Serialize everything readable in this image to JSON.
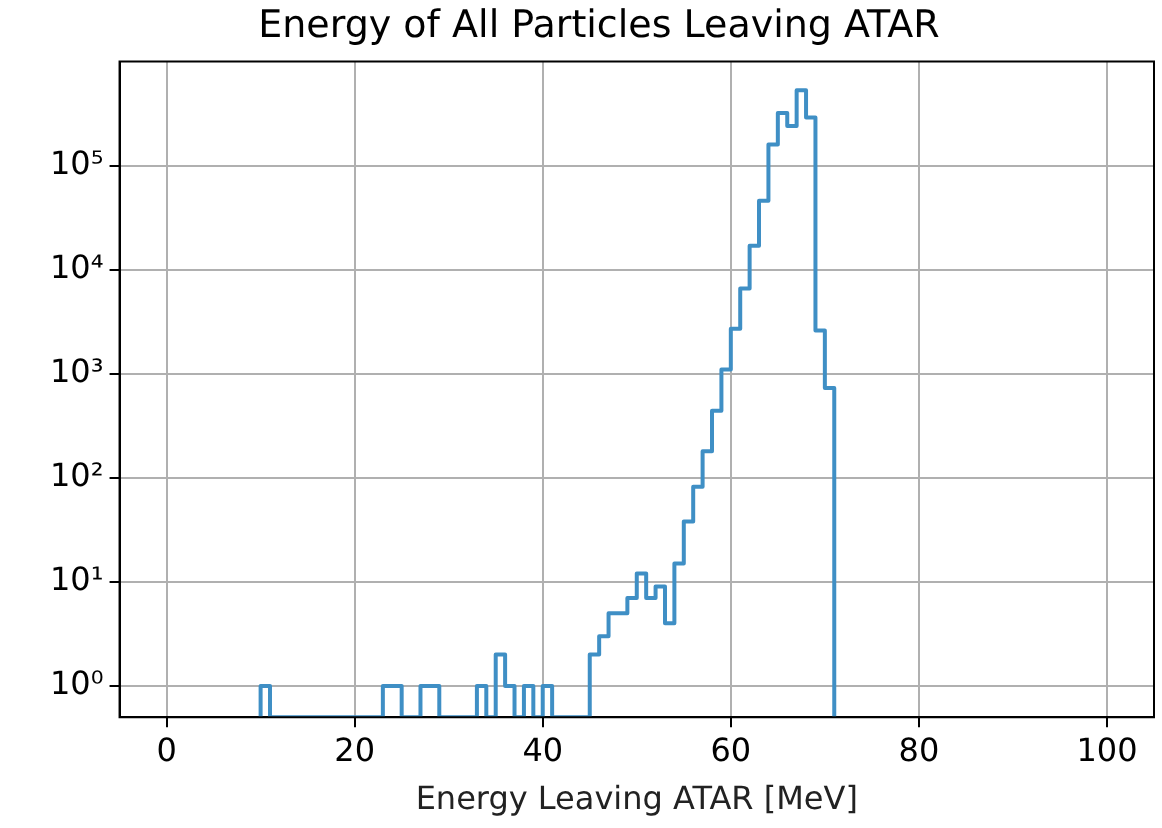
{
  "chart_data": {
    "type": "histogram",
    "title": "Energy of All Particles Leaving ATAR",
    "xlabel": "Energy Leaving ATAR [MeV]",
    "bins": [
      10,
      11,
      12,
      13,
      14,
      15,
      16,
      17,
      18,
      19,
      20,
      21,
      22,
      23,
      24,
      25,
      26,
      27,
      28,
      29,
      30,
      31,
      32,
      33,
      34,
      35,
      36,
      37,
      38,
      39,
      40,
      41,
      42,
      43,
      44,
      45,
      46,
      47,
      48,
      49,
      50,
      51,
      52,
      53,
      54,
      55,
      56,
      57,
      58,
      59,
      60,
      61,
      62,
      63,
      64,
      65,
      66,
      67,
      68,
      69,
      70,
      71
    ],
    "values": [
      1,
      null,
      null,
      null,
      null,
      null,
      null,
      null,
      null,
      null,
      null,
      null,
      null,
      1,
      1,
      null,
      null,
      1,
      1,
      null,
      null,
      null,
      null,
      1,
      null,
      2,
      1,
      null,
      1,
      null,
      1,
      null,
      null,
      null,
      null,
      2,
      3,
      5,
      5,
      7,
      12,
      7,
      9,
      4,
      15,
      38,
      82,
      180,
      440,
      1100,
      2700,
      6600,
      17000,
      46000,
      160000,
      320000,
      240000,
      530000,
      290000,
      2600,
      730
    ],
    "color": "#3f8fc5",
    "log": "y",
    "grid": true,
    "xlim": [
      -5,
      105
    ],
    "xticks": [
      0,
      20,
      40,
      60,
      80,
      100
    ],
    "ylim": [
      0.5,
      1000000
    ],
    "yticks": [
      {
        "value": 1,
        "label": "10⁰"
      },
      {
        "value": 10,
        "label": "10¹"
      },
      {
        "value": 100,
        "label": "10²"
      },
      {
        "value": 1000,
        "label": "10³"
      },
      {
        "value": 10000,
        "label": "10⁴"
      },
      {
        "value": 100000,
        "label": "10⁵"
      }
    ]
  }
}
